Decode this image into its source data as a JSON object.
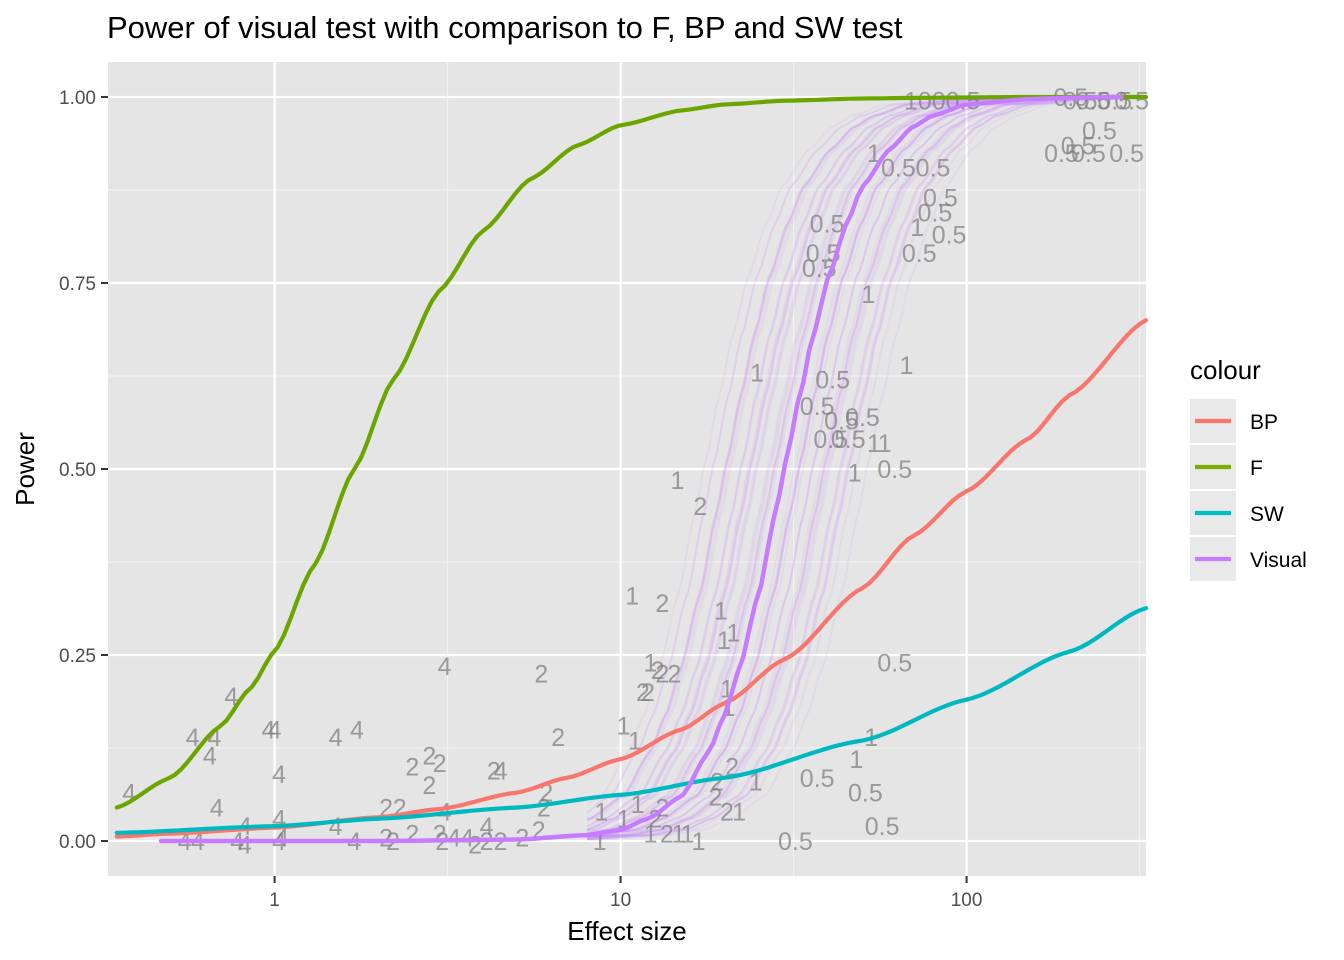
{
  "chart_data": {
    "type": "line",
    "title": "Power of visual test with comparison to F, BP and SW test",
    "xlabel": "Effect size",
    "ylabel": "Power",
    "x_scale": "log10",
    "xlim": [
      0.33,
      330
    ],
    "ylim": [
      -0.047,
      1.047
    ],
    "x_ticks": [
      1,
      10,
      100
    ],
    "x_tick_labels": [
      "1",
      "10",
      "100"
    ],
    "y_ticks": [
      0,
      0.25,
      0.5,
      0.75,
      1
    ],
    "y_tick_labels": [
      "0.00",
      "0.25",
      "0.50",
      "0.75",
      "1.00"
    ],
    "grid": true,
    "background": "#e5e5e5",
    "legend": {
      "title": "colour",
      "position": "right",
      "entries": [
        {
          "label": "BP",
          "color": "#f8766d"
        },
        {
          "label": "F",
          "color": "#7cae00"
        },
        {
          "label": "SW",
          "color": "#00bfc4"
        },
        {
          "label": "Visual",
          "color": "#c77cff"
        }
      ]
    },
    "series": [
      {
        "name": "F",
        "color": "#6ba600",
        "x": [
          0.35,
          0.5,
          0.7,
          0.85,
          1.0,
          1.3,
          1.7,
          2.2,
          3.0,
          4.0,
          5.5,
          7.5,
          10,
          15,
          20,
          30,
          50,
          80,
          150,
          330
        ],
        "y": [
          0.045,
          0.085,
          0.155,
          0.205,
          0.255,
          0.37,
          0.5,
          0.62,
          0.74,
          0.82,
          0.89,
          0.935,
          0.962,
          0.982,
          0.99,
          0.995,
          0.998,
          0.999,
          1.0,
          1.0
        ]
      },
      {
        "name": "BP",
        "color": "#f8766d",
        "x": [
          0.35,
          0.5,
          1,
          2,
          3,
          5,
          7,
          10,
          15,
          20,
          30,
          50,
          70,
          100,
          150,
          200,
          330
        ],
        "y": [
          0.006,
          0.01,
          0.018,
          0.032,
          0.043,
          0.065,
          0.085,
          0.11,
          0.15,
          0.185,
          0.245,
          0.34,
          0.41,
          0.47,
          0.54,
          0.6,
          0.7
        ]
      },
      {
        "name": "SW",
        "color": "#00b8c0",
        "x": [
          0.35,
          1,
          2,
          5,
          10,
          20,
          50,
          100,
          200,
          330
        ],
        "y": [
          0.011,
          0.02,
          0.03,
          0.045,
          0.062,
          0.085,
          0.135,
          0.19,
          0.255,
          0.313
        ]
      },
      {
        "name": "Visual",
        "color": "#c77cff",
        "x": [
          0.47,
          1,
          2,
          5,
          8,
          10,
          12,
          15,
          18,
          20,
          22,
          25,
          28,
          30,
          33,
          36,
          40,
          45,
          50,
          60,
          70,
          80,
          100,
          150,
          200,
          280
        ],
        "y": [
          0.0,
          0.0,
          0.0,
          0.002,
          0.008,
          0.015,
          0.03,
          0.06,
          0.12,
          0.17,
          0.23,
          0.33,
          0.44,
          0.51,
          0.6,
          0.68,
          0.76,
          0.83,
          0.88,
          0.93,
          0.96,
          0.975,
          0.99,
          0.997,
          0.999,
          1.0
        ]
      }
    ],
    "visual_band_count": 60,
    "point_labels": [
      {
        "x": 0.38,
        "y": 0.065,
        "t": "4"
      },
      {
        "x": 0.55,
        "y": 0.0,
        "t": "4"
      },
      {
        "x": 0.6,
        "y": 0.0,
        "t": "4"
      },
      {
        "x": 0.58,
        "y": 0.14,
        "t": "4"
      },
      {
        "x": 0.67,
        "y": 0.14,
        "t": "4"
      },
      {
        "x": 0.65,
        "y": 0.115,
        "t": "4"
      },
      {
        "x": 0.68,
        "y": 0.045,
        "t": "4"
      },
      {
        "x": 0.75,
        "y": 0.195,
        "t": "4"
      },
      {
        "x": 0.78,
        "y": 0.0,
        "t": "4"
      },
      {
        "x": 0.82,
        "y": -0.005,
        "t": "4"
      },
      {
        "x": 0.82,
        "y": 0.02,
        "t": "4"
      },
      {
        "x": 0.96,
        "y": 0.15,
        "t": "4"
      },
      {
        "x": 1.0,
        "y": 0.15,
        "t": "4"
      },
      {
        "x": 1.03,
        "y": 0.09,
        "t": "4"
      },
      {
        "x": 1.03,
        "y": 0.03,
        "t": "4"
      },
      {
        "x": 1.05,
        "y": 0.005,
        "t": "4"
      },
      {
        "x": 1.03,
        "y": 0.0,
        "t": "4"
      },
      {
        "x": 1.5,
        "y": 0.02,
        "t": "4"
      },
      {
        "x": 1.5,
        "y": 0.14,
        "t": "4"
      },
      {
        "x": 1.73,
        "y": 0.15,
        "t": "4"
      },
      {
        "x": 1.7,
        "y": 0.0,
        "t": "4"
      },
      {
        "x": 3.1,
        "y": 0.235,
        "t": "4"
      },
      {
        "x": 2.5,
        "y": 0.1,
        "t": "2"
      },
      {
        "x": 2.8,
        "y": 0.115,
        "t": "2"
      },
      {
        "x": 3.0,
        "y": 0.105,
        "t": "2"
      },
      {
        "x": 2.8,
        "y": 0.075,
        "t": "2"
      },
      {
        "x": 2.1,
        "y": 0.045,
        "t": "2"
      },
      {
        "x": 2.3,
        "y": 0.045,
        "t": "2"
      },
      {
        "x": 2.1,
        "y": 0.005,
        "t": "2"
      },
      {
        "x": 2.2,
        "y": 0.0,
        "t": "2"
      },
      {
        "x": 2.5,
        "y": 0.01,
        "t": "2"
      },
      {
        "x": 3.0,
        "y": 0.01,
        "t": "2"
      },
      {
        "x": 3.05,
        "y": 0.0,
        "t": "2"
      },
      {
        "x": 3.1,
        "y": 0.04,
        "t": "4"
      },
      {
        "x": 3.3,
        "y": 0.005,
        "t": "4"
      },
      {
        "x": 3.6,
        "y": 0.005,
        "t": "4"
      },
      {
        "x": 4.1,
        "y": 0.02,
        "t": "4"
      },
      {
        "x": 4.3,
        "y": 0.095,
        "t": "2"
      },
      {
        "x": 4.5,
        "y": 0.095,
        "t": "4"
      },
      {
        "x": 4.1,
        "y": 0.0,
        "t": "2"
      },
      {
        "x": 3.8,
        "y": -0.005,
        "t": "2"
      },
      {
        "x": 4.5,
        "y": 0.0,
        "t": "2"
      },
      {
        "x": 5.2,
        "y": 0.005,
        "t": "2"
      },
      {
        "x": 5.8,
        "y": 0.015,
        "t": "2"
      },
      {
        "x": 6.0,
        "y": 0.045,
        "t": "2"
      },
      {
        "x": 6.1,
        "y": 0.065,
        "t": "2"
      },
      {
        "x": 5.9,
        "y": 0.225,
        "t": "2"
      },
      {
        "x": 6.6,
        "y": 0.14,
        "t": "2"
      },
      {
        "x": 8.7,
        "y": 0.0,
        "t": "1"
      },
      {
        "x": 8.8,
        "y": 0.04,
        "t": "1"
      },
      {
        "x": 10.2,
        "y": 0.03,
        "t": "1"
      },
      {
        "x": 11.2,
        "y": 0.05,
        "t": "1"
      },
      {
        "x": 10.2,
        "y": 0.155,
        "t": "1"
      },
      {
        "x": 11.0,
        "y": 0.135,
        "t": "1"
      },
      {
        "x": 11.6,
        "y": 0.2,
        "t": "2"
      },
      {
        "x": 12.0,
        "y": 0.2,
        "t": "2"
      },
      {
        "x": 12.2,
        "y": 0.24,
        "t": "1"
      },
      {
        "x": 12.8,
        "y": 0.23,
        "t": "2"
      },
      {
        "x": 13.2,
        "y": 0.225,
        "t": "2"
      },
      {
        "x": 14.3,
        "y": 0.225,
        "t": "2"
      },
      {
        "x": 13.2,
        "y": 0.045,
        "t": "2"
      },
      {
        "x": 12.6,
        "y": 0.03,
        "t": "2"
      },
      {
        "x": 12.2,
        "y": 0.01,
        "t": "1"
      },
      {
        "x": 13.6,
        "y": 0.01,
        "t": "2"
      },
      {
        "x": 14.7,
        "y": 0.01,
        "t": "1"
      },
      {
        "x": 15.6,
        "y": 0.01,
        "t": "1"
      },
      {
        "x": 16.8,
        "y": 0.0,
        "t": "1"
      },
      {
        "x": 10.8,
        "y": 0.33,
        "t": "1"
      },
      {
        "x": 13.2,
        "y": 0.32,
        "t": "2"
      },
      {
        "x": 14.6,
        "y": 0.485,
        "t": "1"
      },
      {
        "x": 17.0,
        "y": 0.45,
        "t": "2"
      },
      {
        "x": 19.5,
        "y": 0.31,
        "t": "1"
      },
      {
        "x": 19.9,
        "y": 0.27,
        "t": "1"
      },
      {
        "x": 21.2,
        "y": 0.28,
        "t": "1"
      },
      {
        "x": 20.3,
        "y": 0.205,
        "t": "1"
      },
      {
        "x": 20.5,
        "y": 0.18,
        "t": "1"
      },
      {
        "x": 18.8,
        "y": 0.06,
        "t": "2"
      },
      {
        "x": 20.3,
        "y": 0.04,
        "t": "2"
      },
      {
        "x": 22.0,
        "y": 0.04,
        "t": "1"
      },
      {
        "x": 24.6,
        "y": 0.08,
        "t": "1"
      },
      {
        "x": 21.0,
        "y": 0.1,
        "t": "2"
      },
      {
        "x": 19.0,
        "y": 0.08,
        "t": "2"
      },
      {
        "x": 24.8,
        "y": 0.63,
        "t": "1"
      },
      {
        "x": 32.0,
        "y": 0.0,
        "t": "0.5"
      },
      {
        "x": 37.0,
        "y": 0.085,
        "t": "0.5"
      },
      {
        "x": 48.0,
        "y": 0.11,
        "t": "1"
      },
      {
        "x": 53.0,
        "y": 0.14,
        "t": "1"
      },
      {
        "x": 51.0,
        "y": 0.065,
        "t": "0.5"
      },
      {
        "x": 57.0,
        "y": 0.02,
        "t": "0.5"
      },
      {
        "x": 62.0,
        "y": 0.24,
        "t": "0.5"
      },
      {
        "x": 67.0,
        "y": 0.64,
        "t": "1"
      },
      {
        "x": 62.0,
        "y": 0.5,
        "t": "0.5"
      },
      {
        "x": 47.5,
        "y": 0.495,
        "t": "1"
      },
      {
        "x": 54.0,
        "y": 0.535,
        "t": "1"
      },
      {
        "x": 58.0,
        "y": 0.535,
        "t": "1"
      },
      {
        "x": 43.5,
        "y": 0.565,
        "t": "0.5"
      },
      {
        "x": 50.0,
        "y": 0.57,
        "t": "0.5"
      },
      {
        "x": 45.5,
        "y": 0.54,
        "t": "0.5"
      },
      {
        "x": 40.5,
        "y": 0.54,
        "t": "0.5"
      },
      {
        "x": 37.0,
        "y": 0.585,
        "t": "0.5"
      },
      {
        "x": 41.0,
        "y": 0.62,
        "t": "0.5"
      },
      {
        "x": 52.0,
        "y": 0.735,
        "t": "1"
      },
      {
        "x": 37.5,
        "y": 0.77,
        "t": "0.5"
      },
      {
        "x": 38.5,
        "y": 0.79,
        "t": "0.5"
      },
      {
        "x": 39.5,
        "y": 0.83,
        "t": "0.5"
      },
      {
        "x": 73.0,
        "y": 0.79,
        "t": "0.5"
      },
      {
        "x": 72.0,
        "y": 0.825,
        "t": "1"
      },
      {
        "x": 89.0,
        "y": 0.815,
        "t": "0.5"
      },
      {
        "x": 81.0,
        "y": 0.845,
        "t": "0.5"
      },
      {
        "x": 84.0,
        "y": 0.865,
        "t": "0.5"
      },
      {
        "x": 54.0,
        "y": 0.925,
        "t": "1"
      },
      {
        "x": 63.5,
        "y": 0.905,
        "t": "0.5"
      },
      {
        "x": 80.0,
        "y": 0.905,
        "t": "0.5"
      },
      {
        "x": 85.0,
        "y": 0.995,
        "t": "1000.5"
      },
      {
        "x": 200.0,
        "y": 1.0,
        "t": "0.5"
      },
      {
        "x": 213.0,
        "y": 0.995,
        "t": "0.5"
      },
      {
        "x": 232.0,
        "y": 0.995,
        "t": "0.5"
      },
      {
        "x": 268.0,
        "y": 0.995,
        "t": "0.5"
      },
      {
        "x": 242.0,
        "y": 0.955,
        "t": "0.5"
      },
      {
        "x": 210.0,
        "y": 0.935,
        "t": "0.5"
      },
      {
        "x": 188.0,
        "y": 0.925,
        "t": "0.5"
      },
      {
        "x": 225.0,
        "y": 0.925,
        "t": "0.5"
      },
      {
        "x": 290.0,
        "y": 0.925,
        "t": "0.5"
      },
      {
        "x": 300.0,
        "y": 0.995,
        "t": "0.5"
      }
    ]
  }
}
